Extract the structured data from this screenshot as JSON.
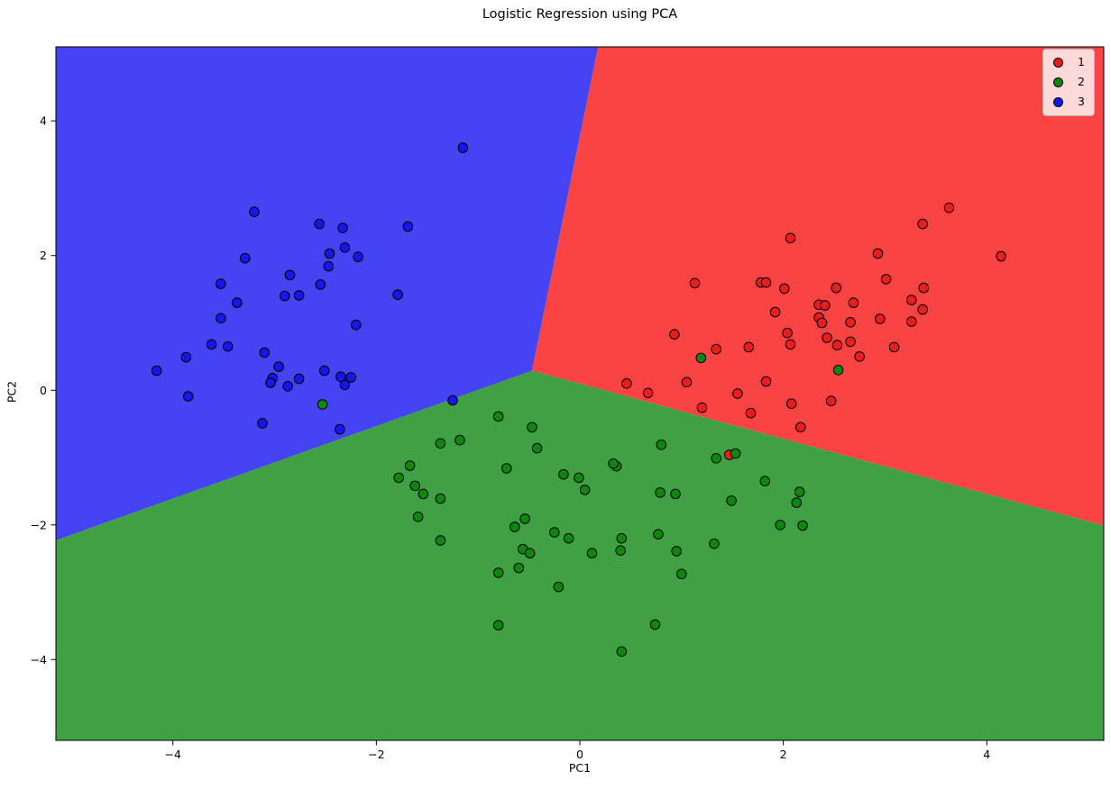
{
  "figure": {
    "title": "Logistic Regression using PCA",
    "xlabel": "PC1",
    "ylabel": "PC2"
  },
  "chart_data": {
    "type": "scatter",
    "title": "Logistic Regression using PCA",
    "xlabel": "PC1",
    "ylabel": "PC2",
    "xlim": [
      -5.15,
      5.15
    ],
    "ylim": [
      -5.2,
      5.1
    ],
    "xticks": [
      -4,
      -2,
      0,
      2,
      4
    ],
    "xtick_labels": [
      "−4",
      "−2",
      "0",
      "2",
      "4"
    ],
    "yticks": [
      -4,
      -2,
      0,
      2,
      4
    ],
    "ytick_labels": [
      "−4",
      "−2",
      "0",
      "2",
      "4"
    ],
    "grid": false,
    "legend": {
      "position": "upper right",
      "entries": [
        {
          "label": "1",
          "color": "#ee1c1c"
        },
        {
          "label": "2",
          "color": "#0c870c"
        },
        {
          "label": "3",
          "color": "#1616ee"
        }
      ]
    },
    "decision_regions": [
      {
        "class": "3",
        "color": "#4444f2",
        "polygon": [
          [
            -5.15,
            5.1
          ],
          [
            0.18,
            5.1
          ],
          [
            -0.47,
            0.29
          ],
          [
            -5.15,
            -2.23
          ]
        ]
      },
      {
        "class": "1",
        "color": "#fa4343",
        "polygon": [
          [
            0.18,
            5.1
          ],
          [
            5.15,
            5.1
          ],
          [
            5.15,
            -2.01
          ],
          [
            -0.47,
            0.29
          ]
        ]
      },
      {
        "class": "2",
        "color": "#40a044",
        "polygon": [
          [
            -5.15,
            -2.23
          ],
          [
            -0.47,
            0.29
          ],
          [
            5.15,
            -2.01
          ],
          [
            5.15,
            -5.2
          ],
          [
            -5.15,
            -5.2
          ]
        ]
      }
    ],
    "series": [
      {
        "name": "1",
        "color": "#ee1c1c",
        "points": [
          [
            3.63,
            2.71
          ],
          [
            3.37,
            2.47
          ],
          [
            2.07,
            2.26
          ],
          [
            2.93,
            2.03
          ],
          [
            4.14,
            1.99
          ],
          [
            1.13,
            1.59
          ],
          [
            1.78,
            1.6
          ],
          [
            1.83,
            1.6
          ],
          [
            2.01,
            1.51
          ],
          [
            2.52,
            1.52
          ],
          [
            3.01,
            1.65
          ],
          [
            3.38,
            1.52
          ],
          [
            2.69,
            1.3
          ],
          [
            3.26,
            1.34
          ],
          [
            3.37,
            1.2
          ],
          [
            2.35,
            1.27
          ],
          [
            2.41,
            1.26
          ],
          [
            1.92,
            1.16
          ],
          [
            2.35,
            1.08
          ],
          [
            2.38,
            1.0
          ],
          [
            2.66,
            1.01
          ],
          [
            2.95,
            1.06
          ],
          [
            3.26,
            1.02
          ],
          [
            0.93,
            0.83
          ],
          [
            2.04,
            0.85
          ],
          [
            2.43,
            0.78
          ],
          [
            1.34,
            0.61
          ],
          [
            1.66,
            0.64
          ],
          [
            2.07,
            0.68
          ],
          [
            2.53,
            0.67
          ],
          [
            2.66,
            0.72
          ],
          [
            3.09,
            0.64
          ],
          [
            2.75,
            0.5
          ],
          [
            0.46,
            0.1
          ],
          [
            0.67,
            -0.04
          ],
          [
            1.05,
            0.12
          ],
          [
            1.83,
            0.13
          ],
          [
            1.55,
            -0.05
          ],
          [
            1.2,
            -0.26
          ],
          [
            1.68,
            -0.34
          ],
          [
            2.08,
            -0.2
          ],
          [
            2.47,
            -0.16
          ],
          [
            2.17,
            -0.55
          ],
          [
            1.47,
            -0.96
          ]
        ]
      },
      {
        "name": "2",
        "color": "#0c870c",
        "points": [
          [
            -2.53,
            -0.21
          ],
          [
            1.19,
            0.48
          ],
          [
            2.54,
            0.3
          ],
          [
            -0.8,
            -0.39
          ],
          [
            -0.47,
            -0.55
          ],
          [
            -1.37,
            -0.79
          ],
          [
            -1.18,
            -0.74
          ],
          [
            -0.42,
            -0.86
          ],
          [
            0.8,
            -0.81
          ],
          [
            -1.67,
            -1.12
          ],
          [
            -1.78,
            -1.3
          ],
          [
            -1.62,
            -1.42
          ],
          [
            -1.54,
            -1.54
          ],
          [
            -1.37,
            -1.61
          ],
          [
            -1.59,
            -1.88
          ],
          [
            -0.72,
            -1.16
          ],
          [
            -0.54,
            -1.91
          ],
          [
            -0.16,
            -1.25
          ],
          [
            -0.01,
            -1.3
          ],
          [
            0.05,
            -1.48
          ],
          [
            0.36,
            -1.13
          ],
          [
            0.79,
            -1.52
          ],
          [
            0.94,
            -1.54
          ],
          [
            1.34,
            -1.01
          ],
          [
            1.53,
            -0.94
          ],
          [
            1.49,
            -1.64
          ],
          [
            1.82,
            -1.35
          ],
          [
            2.16,
            -1.51
          ],
          [
            2.13,
            -1.67
          ],
          [
            -1.37,
            -2.23
          ],
          [
            -0.64,
            -2.03
          ],
          [
            -0.25,
            -2.11
          ],
          [
            -0.11,
            -2.2
          ],
          [
            -0.56,
            -2.36
          ],
          [
            -0.49,
            -2.42
          ],
          [
            -0.8,
            -2.71
          ],
          [
            -0.6,
            -2.64
          ],
          [
            -0.21,
            -2.92
          ],
          [
            0.12,
            -2.42
          ],
          [
            0.4,
            -2.38
          ],
          [
            0.41,
            -2.2
          ],
          [
            0.77,
            -2.14
          ],
          [
            0.95,
            -2.39
          ],
          [
            1.0,
            -2.73
          ],
          [
            1.32,
            -2.28
          ],
          [
            1.97,
            -2.0
          ],
          [
            2.19,
            -2.01
          ],
          [
            -0.8,
            -3.49
          ],
          [
            0.74,
            -3.48
          ],
          [
            0.41,
            -3.88
          ],
          [
            0.33,
            -1.09
          ]
        ]
      },
      {
        "name": "3",
        "color": "#1616ee",
        "points": [
          [
            -1.15,
            3.6
          ],
          [
            -3.2,
            2.65
          ],
          [
            -2.56,
            2.47
          ],
          [
            -2.33,
            2.41
          ],
          [
            -1.69,
            2.43
          ],
          [
            -2.31,
            2.12
          ],
          [
            -2.46,
            2.03
          ],
          [
            -2.18,
            1.98
          ],
          [
            -2.47,
            1.84
          ],
          [
            -3.29,
            1.96
          ],
          [
            -2.85,
            1.71
          ],
          [
            -3.53,
            1.58
          ],
          [
            -2.55,
            1.57
          ],
          [
            -2.9,
            1.4
          ],
          [
            -2.76,
            1.41
          ],
          [
            -1.79,
            1.42
          ],
          [
            -3.37,
            1.3
          ],
          [
            -3.53,
            1.07
          ],
          [
            -2.2,
            0.97
          ],
          [
            -3.62,
            0.68
          ],
          [
            -3.46,
            0.65
          ],
          [
            -3.1,
            0.56
          ],
          [
            -3.87,
            0.49
          ],
          [
            -2.96,
            0.35
          ],
          [
            -4.16,
            0.29
          ],
          [
            -2.51,
            0.29
          ],
          [
            -2.35,
            0.2
          ],
          [
            -2.25,
            0.19
          ],
          [
            -3.02,
            0.18
          ],
          [
            -3.04,
            0.11
          ],
          [
            -2.76,
            0.17
          ],
          [
            -2.87,
            0.06
          ],
          [
            -2.31,
            0.08
          ],
          [
            -3.85,
            -0.09
          ],
          [
            -3.12,
            -0.49
          ],
          [
            -2.36,
            -0.58
          ],
          [
            -1.25,
            -0.15
          ]
        ]
      }
    ]
  }
}
